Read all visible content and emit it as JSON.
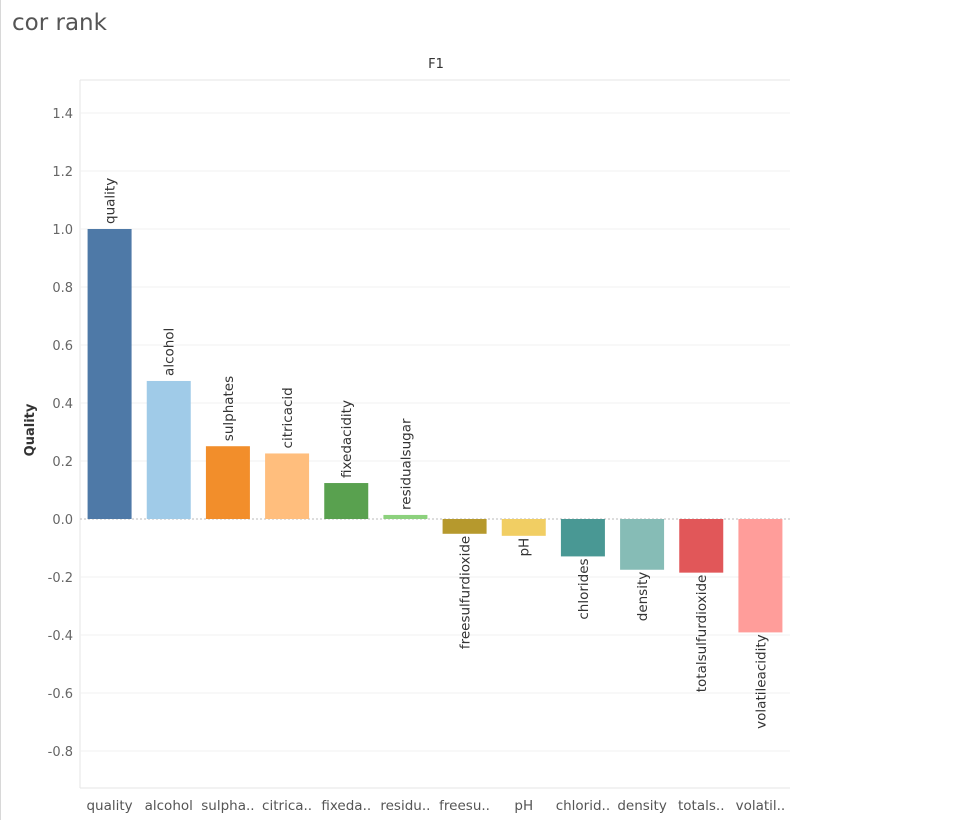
{
  "page": {
    "title": "cor rank"
  },
  "chart_data": {
    "type": "bar",
    "title": "F1",
    "ylabel": "Quality",
    "xlabel": "",
    "ylim": [
      -0.9,
      1.5
    ],
    "yticks": [
      1.4,
      1.2,
      1.0,
      0.8,
      0.6,
      0.4,
      0.2,
      0.0,
      -0.2,
      -0.4,
      -0.6,
      -0.8
    ],
    "ytick_labels": [
      "1.4",
      "1.2",
      "1.0",
      "0.8",
      "0.6",
      "0.4",
      "0.2",
      "0.0",
      "-0.2",
      "-0.4",
      "-0.6",
      "-0.8"
    ],
    "grid": true,
    "categories": [
      "quality",
      "alcohol",
      "sulphates",
      "citricacid",
      "fixedacidity",
      "residualsugar",
      "freesulfurdioxide",
      "pH",
      "chlorides",
      "density",
      "totalsulfurdioxide",
      "volatileacidity"
    ],
    "category_axis_labels": [
      "quality",
      "alcohol",
      "sulpha..",
      "citrica..",
      "fixeda..",
      "residu..",
      "freesu..",
      "pH",
      "chlorid..",
      "density",
      "totals..",
      "volatil.."
    ],
    "values": [
      1.0,
      0.476,
      0.251,
      0.226,
      0.124,
      0.014,
      -0.051,
      -0.058,
      -0.129,
      -0.175,
      -0.185,
      -0.391
    ],
    "colors": [
      "#4e79a7",
      "#a0cbe8",
      "#f28e2b",
      "#ffbe7d",
      "#59a14f",
      "#8cd17d",
      "#b6992d",
      "#f1ce63",
      "#499894",
      "#86bcb6",
      "#e15759",
      "#ff9d9a"
    ]
  }
}
